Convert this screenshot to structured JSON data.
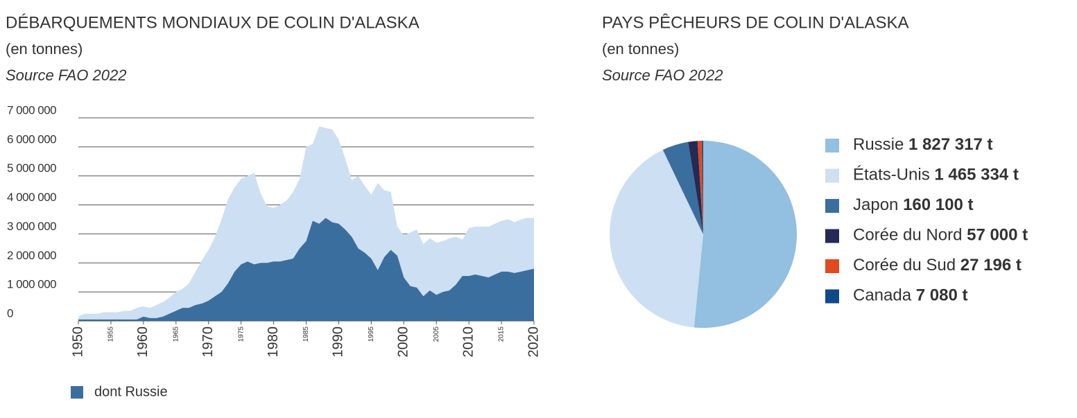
{
  "chart_data": [
    {
      "type": "area",
      "title": "DÉBARQUEMENTS MONDIAUX DE COLIN D'ALASKA",
      "subtitle": "(en tonnes)",
      "source": "Source FAO 2022",
      "x": [
        1950,
        1951,
        1952,
        1953,
        1954,
        1955,
        1956,
        1957,
        1958,
        1959,
        1960,
        1961,
        1962,
        1963,
        1964,
        1965,
        1966,
        1967,
        1968,
        1969,
        1970,
        1971,
        1972,
        1973,
        1974,
        1975,
        1976,
        1977,
        1978,
        1979,
        1980,
        1981,
        1982,
        1983,
        1984,
        1985,
        1986,
        1987,
        1988,
        1989,
        1990,
        1991,
        1992,
        1993,
        1994,
        1995,
        1996,
        1997,
        1998,
        1999,
        2000,
        2001,
        2002,
        2003,
        2004,
        2005,
        2006,
        2007,
        2008,
        2009,
        2010,
        2011,
        2012,
        2013,
        2014,
        2015,
        2016,
        2017,
        2018,
        2019,
        2020
      ],
      "series": [
        {
          "color": "#cddff2",
          "values": [
            150000,
            250000,
            250000,
            250000,
            300000,
            300000,
            300000,
            350000,
            350000,
            450000,
            500000,
            450000,
            550000,
            650000,
            800000,
            1000000,
            1100000,
            1300000,
            1700000,
            2100000,
            2450000,
            2900000,
            3500000,
            4200000,
            4600000,
            4900000,
            5000000,
            5100000,
            4400000,
            3950000,
            3900000,
            4000000,
            4150000,
            4450000,
            4900000,
            6000000,
            6100000,
            6700000,
            6650000,
            6600000,
            6250000,
            5600000,
            4850000,
            5000000,
            4650000,
            4350000,
            4750000,
            4500000,
            4450000,
            3250000,
            2950000,
            3050000,
            3150000,
            2650000,
            2850000,
            2700000,
            2750000,
            2850000,
            2900000,
            2800000,
            3200000,
            3250000,
            3250000,
            3250000,
            3350000,
            3450000,
            3500000,
            3400000,
            3500000,
            3550000,
            3550000
          ]
        },
        {
          "name": "dont Russie",
          "color": "#3a6e9e",
          "values": [
            50000,
            50000,
            50000,
            50000,
            50000,
            50000,
            50000,
            50000,
            50000,
            50000,
            150000,
            100000,
            100000,
            150000,
            250000,
            350000,
            450000,
            450000,
            550000,
            600000,
            700000,
            850000,
            1000000,
            1300000,
            1700000,
            1950000,
            2050000,
            1950000,
            2000000,
            2000000,
            2050000,
            2050000,
            2100000,
            2150000,
            2500000,
            2750000,
            3450000,
            3350000,
            3550000,
            3400000,
            3350000,
            3150000,
            2900000,
            2500000,
            2350000,
            2150000,
            1750000,
            2200000,
            2450000,
            2250000,
            1500000,
            1200000,
            1150000,
            850000,
            1050000,
            900000,
            1000000,
            1050000,
            1250000,
            1550000,
            1550000,
            1600000,
            1550000,
            1500000,
            1600000,
            1700000,
            1700000,
            1650000,
            1700000,
            1750000,
            1800000
          ]
        }
      ],
      "xlim": [
        1950,
        2020
      ],
      "xticks": [
        1950,
        1955,
        1960,
        1965,
        1970,
        1975,
        1980,
        1985,
        1990,
        1995,
        2000,
        2005,
        2010,
        2015,
        2020
      ],
      "ylim": [
        0,
        7000000
      ],
      "yticks": [
        0,
        {
          "value": 1000000,
          "label": "1 000 000"
        },
        {
          "value": 2000000,
          "label": "2 000 000"
        },
        {
          "value": 3000000,
          "label": "3 000 000"
        },
        {
          "value": 4000000,
          "label": "4 000 000"
        },
        {
          "value": 5000000,
          "label": "5 000 000"
        },
        {
          "value": 6000000,
          "label": "6 000 000"
        },
        {
          "value": 7000000,
          "label": "7 000 000"
        }
      ],
      "grid": true
    },
    {
      "type": "pie",
      "title": "PAYS PÊCHEURS DE COLIN D'ALASKA",
      "subtitle": "(en tonnes)",
      "source": "Source FAO 2022",
      "categories": [
        "Russie",
        "États-Unis",
        "Japon",
        "Corée du Nord",
        "Corée du Sud",
        "Canada"
      ],
      "values": [
        1827317,
        1465334,
        160100,
        57000,
        27196,
        7080
      ],
      "value_labels": [
        "1 827 317 t",
        "1 465 334 t",
        "160 100 t",
        "57 000 t",
        "27 196 t",
        "7 080 t"
      ],
      "colors": [
        "#93bfe0",
        "#cddff2",
        "#3a6e9e",
        "#232a55",
        "#e04a1f",
        "#0e4a8a"
      ]
    }
  ]
}
